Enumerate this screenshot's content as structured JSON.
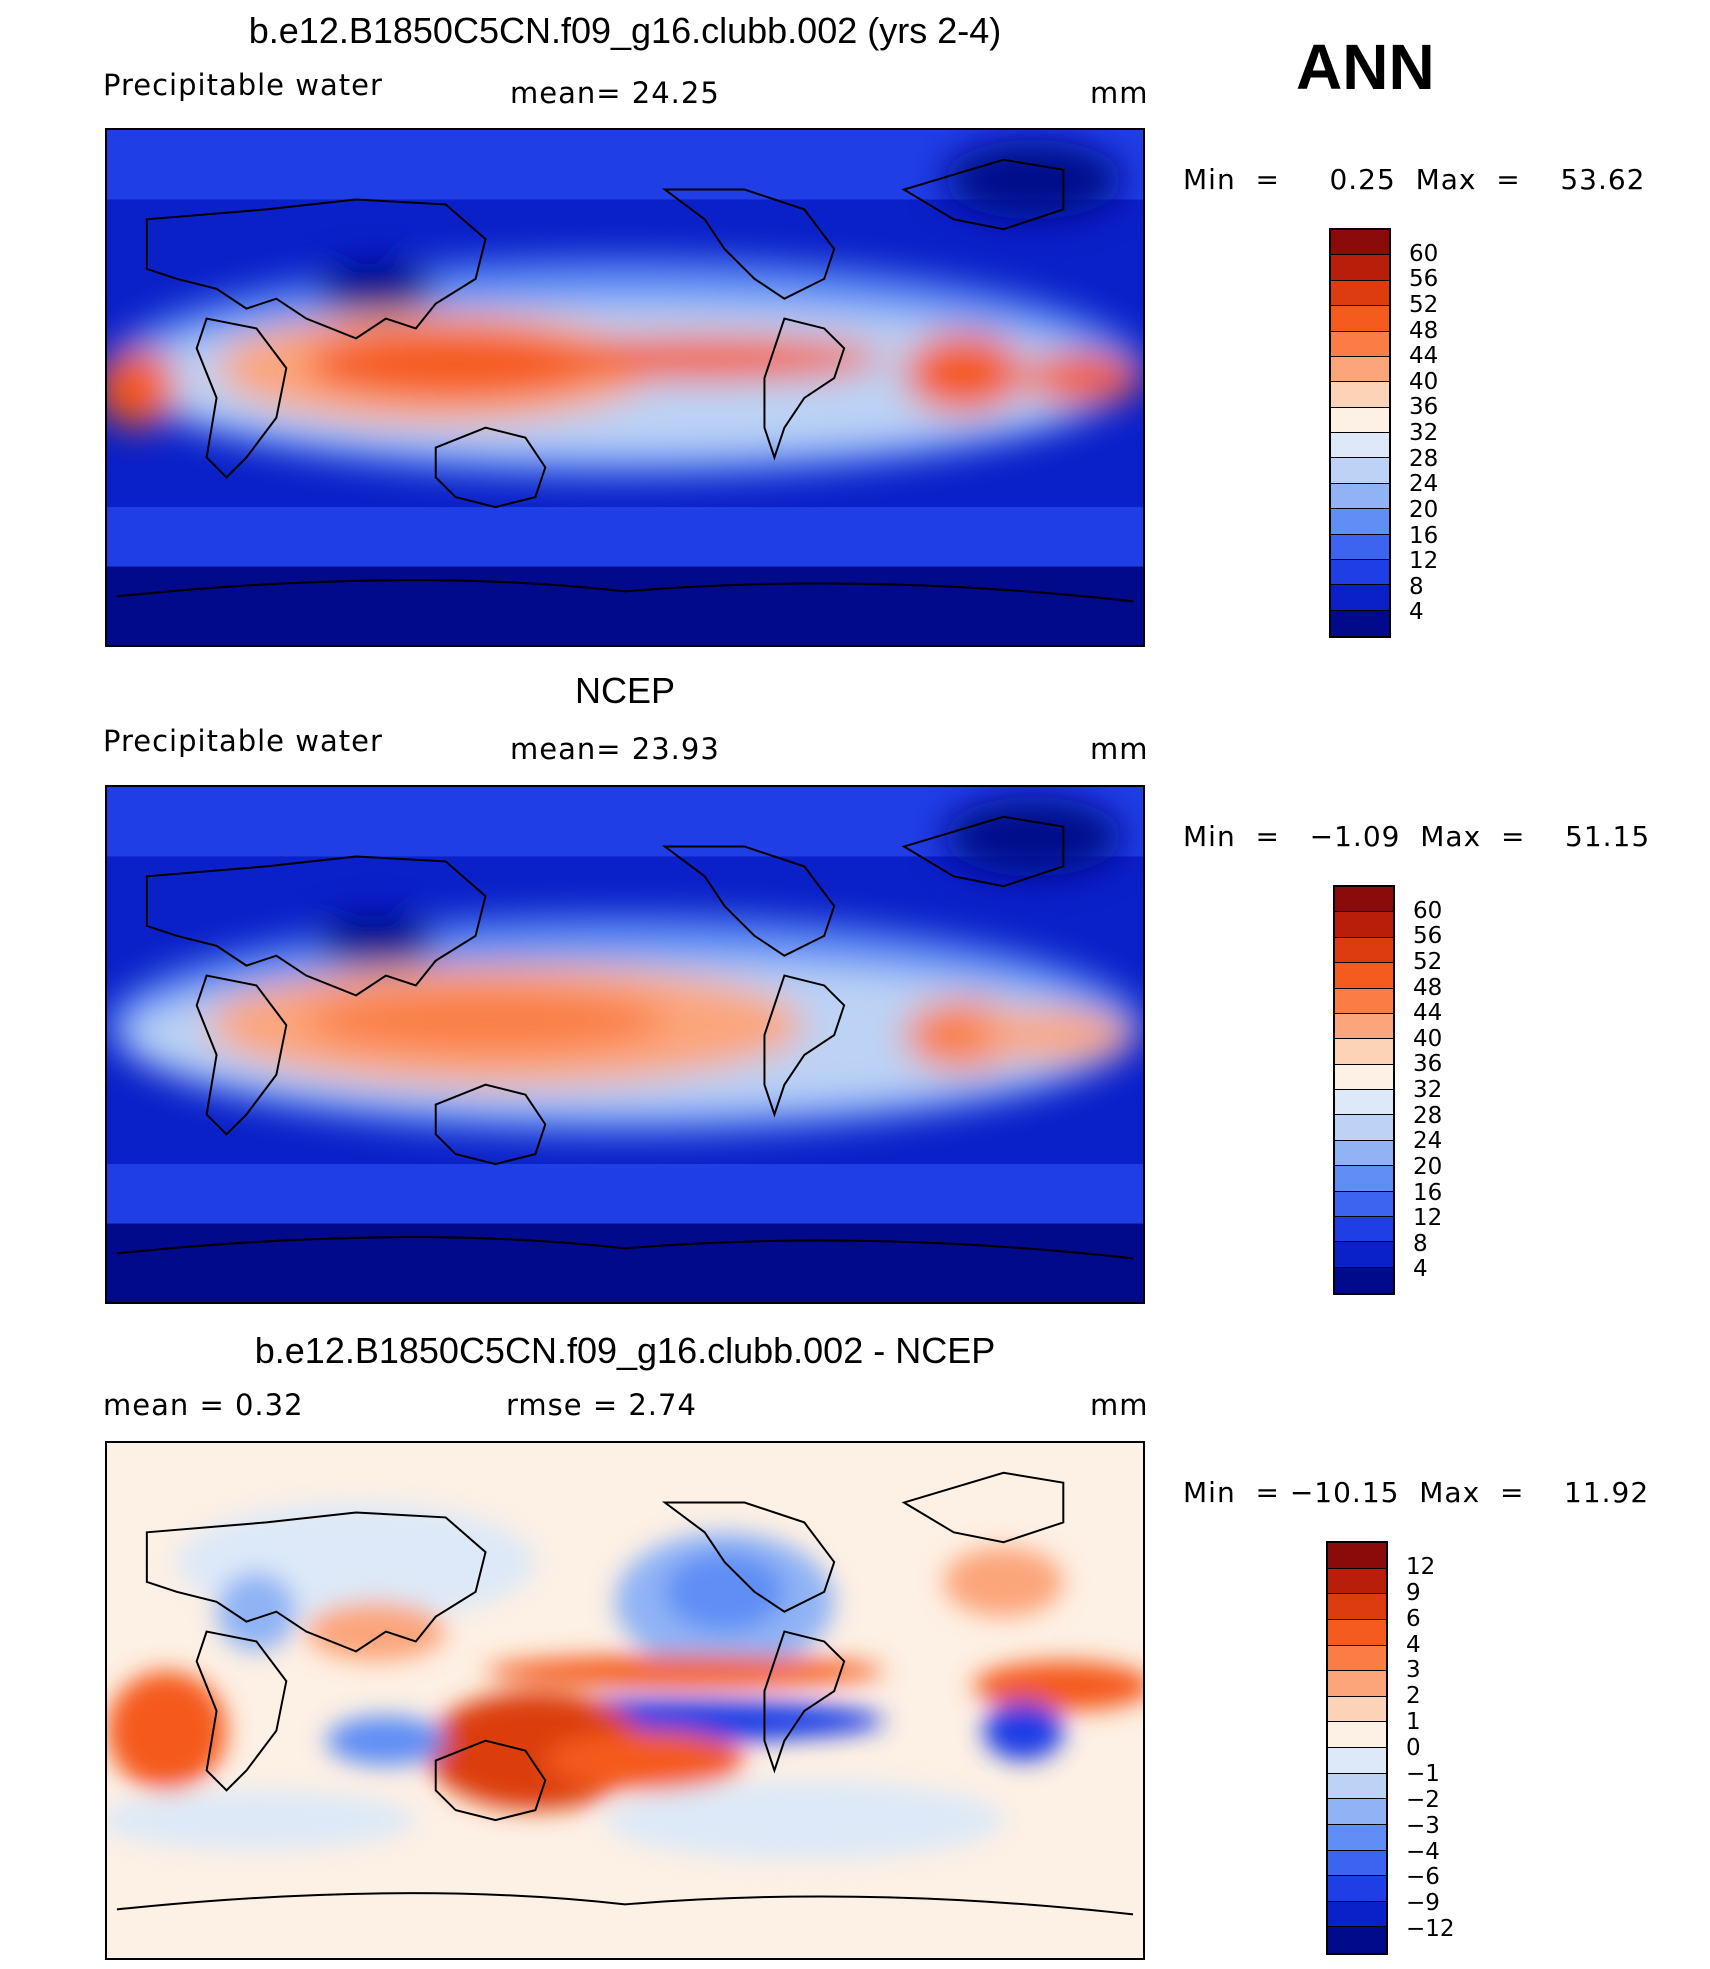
{
  "season_label": "ANN",
  "panels": [
    {
      "title": "b.e12.B1850C5CN.f09_g16.clubb.002 (yrs 2-4)",
      "variable": "Precipitable  water",
      "stat1": "mean=   24.25",
      "stat2": "",
      "units": "mm",
      "minmax": "Min  =     0.25  Max  =    53.62",
      "type": "absolute"
    },
    {
      "title": "NCEP",
      "variable": "Precipitable  water",
      "stat1": "mean=   23.93",
      "stat2": "",
      "units": "mm",
      "minmax": "Min  =   −1.09  Max  =    51.15",
      "type": "absolute"
    },
    {
      "title": "b.e12.B1850C5CN.f09_g16.clubb.002 - NCEP",
      "variable": "mean  =      0.32",
      "stat1": "rmse  =     2.74",
      "stat2": "",
      "units": "mm",
      "minmax": "Min  = −10.15  Max  =    11.92",
      "type": "difference"
    }
  ],
  "colorbar_abs": {
    "labels": [
      "60",
      "56",
      "52",
      "48",
      "44",
      "40",
      "36",
      "32",
      "28",
      "24",
      "20",
      "16",
      "12",
      "8",
      "4"
    ],
    "colors": [
      "#8b0a0a",
      "#b81e0a",
      "#dc3c0e",
      "#f55a1e",
      "#fa7e44",
      "#fca57a",
      "#fdd3b8",
      "#fdf0e4",
      "#dde9f8",
      "#bcd3f5",
      "#8fb3f5",
      "#5f8ef5",
      "#3b64f0",
      "#1f3ee6",
      "#0a20c8",
      "#000a8a"
    ]
  },
  "colorbar_diff": {
    "labels": [
      "12",
      "9",
      "6",
      "4",
      "3",
      "2",
      "1",
      "0",
      "−1",
      "−2",
      "−3",
      "−4",
      "−6",
      "−9",
      "−12"
    ],
    "colors": [
      "#8b0a0a",
      "#b81e0a",
      "#dc3c0e",
      "#f55a1e",
      "#fa7e44",
      "#fca57a",
      "#fdd3b8",
      "#fdf0e4",
      "#dde9f8",
      "#bcd3f5",
      "#8fb3f5",
      "#5f8ef5",
      "#3b64f0",
      "#1f3ee6",
      "#0a20c8",
      "#000a8a"
    ]
  }
}
